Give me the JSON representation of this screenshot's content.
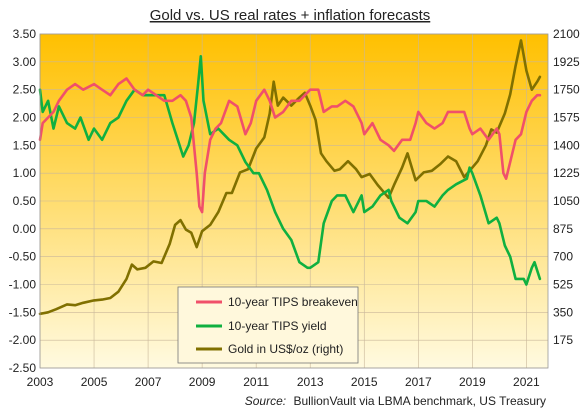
{
  "chart_data": {
    "type": "line",
    "title": "Gold vs. US real rates + inflation forecasts",
    "source_label": "Source:",
    "source_text": "BullionVault via LBMA benchmark, US Treasury",
    "x_ticks": [
      "2003",
      "2005",
      "2007",
      "2009",
      "2011",
      "2013",
      "2015",
      "2017",
      "2019",
      "2021"
    ],
    "y_left_ticks": [
      "3.50",
      "3.00",
      "2.50",
      "2.00",
      "1.50",
      "1.00",
      "0.50",
      "0.00",
      "-0.50",
      "-1.00",
      "-1.50",
      "-2.00",
      "-2.50"
    ],
    "y_right_ticks": [
      "2100",
      "1925",
      "1750",
      "1575",
      "1400",
      "1225",
      "1050",
      "875",
      "700",
      "525",
      "350",
      "175",
      ""
    ],
    "xlim": [
      2003,
      2021.8
    ],
    "ylim_left": [
      -2.5,
      3.5
    ],
    "ylim_right": [
      0,
      2100
    ],
    "grid": true,
    "legend_position": "lower-center",
    "colors": {
      "bg_top": "#FFC000",
      "bg_bottom": "#FFFAE0",
      "breakeven": "#F0506A",
      "yield": "#10B040",
      "gold": "#807000"
    },
    "series": [
      {
        "name": "10-year TIPS breakeven",
        "axis": "left",
        "x": [
          2003.0,
          2003.1,
          2003.3,
          2003.5,
          2003.7,
          2004.0,
          2004.3,
          2004.6,
          2005.0,
          2005.3,
          2005.6,
          2005.9,
          2006.2,
          2006.5,
          2006.8,
          2007.0,
          2007.3,
          2007.6,
          2007.9,
          2008.2,
          2008.4,
          2008.6,
          2008.8,
          2008.9,
          2009.0,
          2009.1,
          2009.3,
          2009.5,
          2009.7,
          2010.0,
          2010.3,
          2010.6,
          2010.8,
          2011.0,
          2011.3,
          2011.5,
          2011.7,
          2012.0,
          2012.3,
          2012.6,
          2013.0,
          2013.3,
          2013.5,
          2013.8,
          2014.0,
          2014.3,
          2014.6,
          2014.9,
          2015.0,
          2015.3,
          2015.6,
          2015.9,
          2016.1,
          2016.4,
          2016.7,
          2016.9,
          2017.0,
          2017.3,
          2017.6,
          2017.9,
          2018.1,
          2018.4,
          2018.7,
          2018.9,
          2019.0,
          2019.3,
          2019.6,
          2019.9,
          2020.0,
          2020.15,
          2020.25,
          2020.4,
          2020.6,
          2020.8,
          2021.0,
          2021.2,
          2021.4,
          2021.5
        ],
        "values": [
          1.6,
          1.9,
          2.0,
          2.1,
          2.3,
          2.5,
          2.6,
          2.5,
          2.6,
          2.5,
          2.4,
          2.6,
          2.7,
          2.5,
          2.4,
          2.5,
          2.4,
          2.3,
          2.3,
          2.4,
          2.3,
          2.0,
          1.0,
          0.4,
          0.3,
          1.0,
          1.6,
          1.8,
          1.9,
          2.3,
          2.2,
          1.7,
          1.9,
          2.3,
          2.5,
          2.3,
          2.0,
          2.1,
          2.3,
          2.3,
          2.5,
          2.5,
          2.1,
          2.2,
          2.2,
          2.3,
          2.2,
          1.9,
          1.7,
          1.9,
          1.6,
          1.5,
          1.4,
          1.6,
          1.6,
          1.9,
          2.1,
          1.9,
          1.8,
          1.9,
          2.1,
          2.1,
          2.1,
          1.8,
          1.7,
          1.8,
          1.6,
          1.8,
          1.7,
          1.0,
          0.9,
          1.2,
          1.6,
          1.7,
          2.1,
          2.3,
          2.4,
          2.4
        ]
      },
      {
        "name": "10-year TIPS yield",
        "axis": "left",
        "x": [
          2003.0,
          2003.1,
          2003.3,
          2003.5,
          2003.7,
          2004.0,
          2004.3,
          2004.5,
          2004.8,
          2005.0,
          2005.3,
          2005.6,
          2005.9,
          2006.2,
          2006.5,
          2006.8,
          2007.0,
          2007.3,
          2007.6,
          2007.9,
          2008.1,
          2008.3,
          2008.5,
          2008.7,
          2008.85,
          2008.95,
          2009.05,
          2009.3,
          2009.6,
          2010.0,
          2010.3,
          2010.6,
          2010.9,
          2011.1,
          2011.4,
          2011.7,
          2012.0,
          2012.3,
          2012.6,
          2012.9,
          2013.0,
          2013.3,
          2013.5,
          2013.8,
          2014.0,
          2014.3,
          2014.6,
          2014.9,
          2015.0,
          2015.3,
          2015.6,
          2015.9,
          2016.0,
          2016.3,
          2016.6,
          2016.9,
          2017.0,
          2017.3,
          2017.6,
          2017.9,
          2018.1,
          2018.4,
          2018.8,
          2018.9,
          2019.0,
          2019.3,
          2019.6,
          2019.9,
          2020.0,
          2020.2,
          2020.4,
          2020.6,
          2020.9,
          2021.0,
          2021.2,
          2021.3,
          2021.5
        ],
        "values": [
          2.5,
          2.1,
          2.3,
          1.8,
          2.2,
          1.9,
          1.8,
          2.0,
          1.6,
          1.8,
          1.6,
          1.9,
          2.0,
          2.3,
          2.5,
          2.4,
          2.4,
          2.4,
          2.4,
          1.9,
          1.6,
          1.3,
          1.5,
          1.9,
          2.6,
          3.1,
          2.3,
          1.7,
          1.8,
          1.6,
          1.5,
          1.2,
          1.0,
          1.0,
          0.7,
          0.3,
          0.0,
          -0.2,
          -0.6,
          -0.7,
          -0.7,
          -0.6,
          0.1,
          0.5,
          0.6,
          0.6,
          0.3,
          0.6,
          0.3,
          0.4,
          0.6,
          0.7,
          0.5,
          0.2,
          0.1,
          0.3,
          0.5,
          0.5,
          0.4,
          0.6,
          0.7,
          0.8,
          0.9,
          1.1,
          1.0,
          0.6,
          0.1,
          0.2,
          0.1,
          -0.3,
          -0.5,
          -0.9,
          -0.9,
          -1.0,
          -0.7,
          -0.6,
          -0.9
        ]
      },
      {
        "name": "Gold in US$/oz (right)",
        "axis": "right",
        "x": [
          2003.0,
          2003.3,
          2003.6,
          2004.0,
          2004.3,
          2004.6,
          2005.0,
          2005.3,
          2005.6,
          2005.9,
          2006.2,
          2006.4,
          2006.6,
          2006.9,
          2007.2,
          2007.5,
          2007.8,
          2008.0,
          2008.2,
          2008.4,
          2008.6,
          2008.8,
          2009.0,
          2009.3,
          2009.6,
          2009.9,
          2010.1,
          2010.4,
          2010.7,
          2011.0,
          2011.3,
          2011.5,
          2011.65,
          2011.8,
          2012.0,
          2012.3,
          2012.6,
          2012.8,
          2013.0,
          2013.2,
          2013.4,
          2013.6,
          2013.9,
          2014.1,
          2014.4,
          2014.7,
          2014.9,
          2015.2,
          2015.5,
          2015.9,
          2016.1,
          2016.4,
          2016.6,
          2016.9,
          2017.2,
          2017.5,
          2017.8,
          2018.1,
          2018.4,
          2018.7,
          2018.9,
          2019.2,
          2019.5,
          2019.7,
          2019.9,
          2020.2,
          2020.4,
          2020.6,
          2020.8,
          2021.0,
          2021.2,
          2021.4,
          2021.5
        ],
        "values": [
          340,
          350,
          370,
          400,
          395,
          410,
          425,
          430,
          440,
          480,
          560,
          650,
          620,
          630,
          670,
          660,
          780,
          900,
          930,
          870,
          850,
          760,
          860,
          900,
          980,
          1100,
          1100,
          1230,
          1250,
          1380,
          1450,
          1600,
          1800,
          1650,
          1700,
          1650,
          1700,
          1730,
          1650,
          1560,
          1350,
          1300,
          1240,
          1250,
          1300,
          1250,
          1200,
          1220,
          1150,
          1070,
          1150,
          1260,
          1350,
          1180,
          1230,
          1240,
          1280,
          1330,
          1300,
          1200,
          1240,
          1300,
          1400,
          1500,
          1480,
          1600,
          1720,
          1900,
          2060,
          1870,
          1750,
          1800,
          1830
        ]
      }
    ]
  }
}
